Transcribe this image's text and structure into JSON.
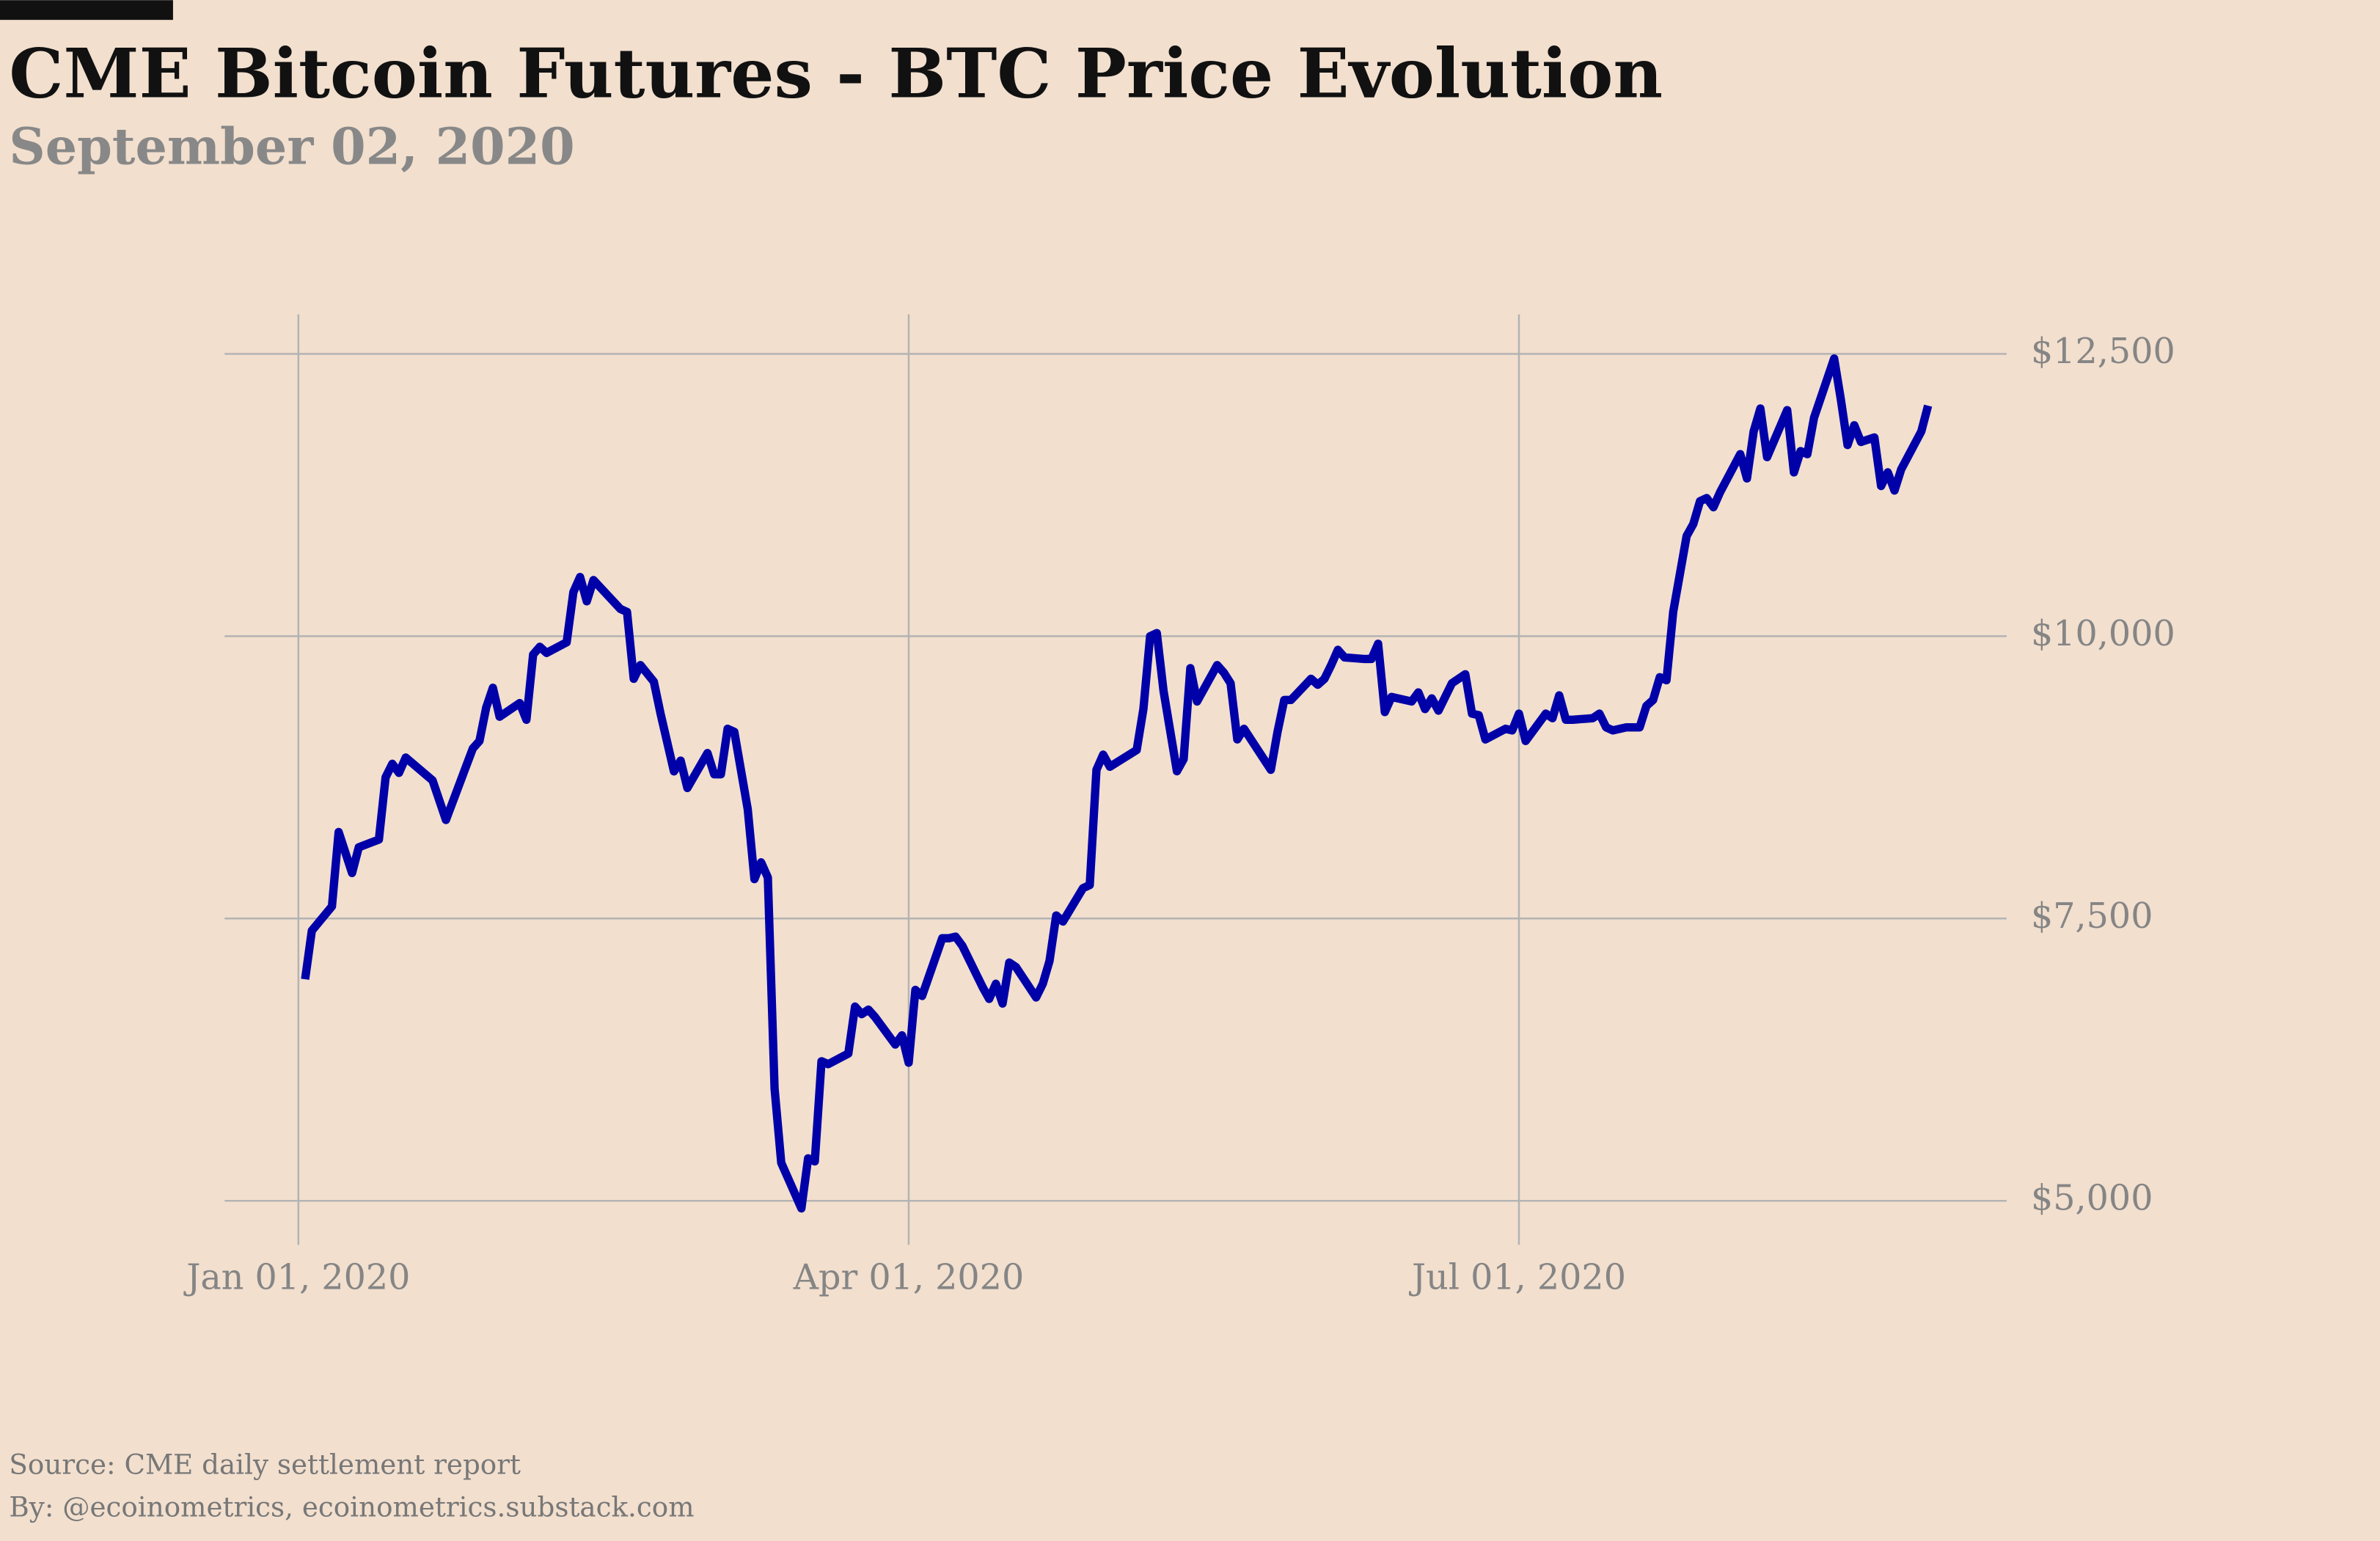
{
  "chart_data": {
    "type": "line",
    "title": "CME Bitcoin Futures - BTC Price Evolution",
    "subtitle": "September 02, 2020",
    "notes": [
      "Source: CME daily settlement report",
      "By: @ecoinometrics, ecoinometrics.substack.com"
    ],
    "color": "#0000a8",
    "grid": true,
    "xlim": [
      "2019-12-21",
      "2020-09-09"
    ],
    "xticks": [
      {
        "value": "2020-01-01",
        "label": "Jan 01, 2020"
      },
      {
        "value": "2020-04-01",
        "label": "Apr 01, 2020"
      },
      {
        "value": "2020-07-01",
        "label": "Jul 01, 2020"
      }
    ],
    "ylim": [
      4610,
      12850
    ],
    "yticks": [
      {
        "value": 5000,
        "label": "$5,000"
      },
      {
        "value": 7500,
        "label": "$7,500"
      },
      {
        "value": 10000,
        "label": "$10,000"
      },
      {
        "value": 12500,
        "label": "$12,500"
      }
    ],
    "x": [
      "2020-01-02",
      "2020-01-03",
      "2020-01-06",
      "2020-01-07",
      "2020-01-09",
      "2020-01-10",
      "2020-01-13",
      "2020-01-14",
      "2020-01-15",
      "2020-01-16",
      "2020-01-17",
      "2020-01-21",
      "2020-01-23",
      "2020-01-27",
      "2020-01-28",
      "2020-01-29",
      "2020-01-30",
      "2020-01-31",
      "2020-02-03",
      "2020-02-04",
      "2020-02-05",
      "2020-02-06",
      "2020-02-07",
      "2020-02-10",
      "2020-02-11",
      "2020-02-12",
      "2020-02-13",
      "2020-02-14",
      "2020-02-18",
      "2020-02-19",
      "2020-02-20",
      "2020-02-21",
      "2020-02-23",
      "2020-02-24",
      "2020-02-26",
      "2020-02-27",
      "2020-02-28",
      "2020-03-02",
      "2020-03-03",
      "2020-03-04",
      "2020-03-05",
      "2020-03-06",
      "2020-03-08",
      "2020-03-09",
      "2020-03-10",
      "2020-03-11",
      "2020-03-12",
      "2020-03-13",
      "2020-03-16",
      "2020-03-17",
      "2020-03-18",
      "2020-03-19",
      "2020-03-20",
      "2020-03-23",
      "2020-03-24",
      "2020-03-25",
      "2020-03-26",
      "2020-03-27",
      "2020-03-30",
      "2020-03-31",
      "2020-04-01",
      "2020-04-02",
      "2020-04-03",
      "2020-04-06",
      "2020-04-07",
      "2020-04-08",
      "2020-04-09",
      "2020-04-12",
      "2020-04-13",
      "2020-04-14",
      "2020-04-15",
      "2020-04-16",
      "2020-04-17",
      "2020-04-20",
      "2020-04-21",
      "2020-04-22",
      "2020-04-23",
      "2020-04-24",
      "2020-04-27",
      "2020-04-28",
      "2020-04-29",
      "2020-04-30",
      "2020-05-01",
      "2020-05-05",
      "2020-05-06",
      "2020-05-07",
      "2020-05-08",
      "2020-05-09",
      "2020-05-11",
      "2020-05-12",
      "2020-05-13",
      "2020-05-14",
      "2020-05-17",
      "2020-05-18",
      "2020-05-19",
      "2020-05-20",
      "2020-05-21",
      "2020-05-25",
      "2020-05-26",
      "2020-05-27",
      "2020-05-28",
      "2020-05-31",
      "2020-06-01",
      "2020-06-02",
      "2020-06-03",
      "2020-06-04",
      "2020-06-05",
      "2020-06-08",
      "2020-06-09",
      "2020-06-10",
      "2020-06-11",
      "2020-06-12",
      "2020-06-15",
      "2020-06-16",
      "2020-06-17",
      "2020-06-18",
      "2020-06-19",
      "2020-06-21",
      "2020-06-23",
      "2020-06-24",
      "2020-06-25",
      "2020-06-26",
      "2020-06-29",
      "2020-06-30",
      "2020-07-01",
      "2020-07-02",
      "2020-07-05",
      "2020-07-06",
      "2020-07-07",
      "2020-07-08",
      "2020-07-09",
      "2020-07-12",
      "2020-07-13",
      "2020-07-14",
      "2020-07-15",
      "2020-07-17",
      "2020-07-19",
      "2020-07-20",
      "2020-07-21",
      "2020-07-22",
      "2020-07-23",
      "2020-07-24",
      "2020-07-26",
      "2020-07-27",
      "2020-07-28",
      "2020-07-29",
      "2020-07-30",
      "2020-07-31",
      "2020-08-03",
      "2020-08-04",
      "2020-08-05",
      "2020-08-06",
      "2020-08-07",
      "2020-08-10",
      "2020-08-11",
      "2020-08-12",
      "2020-08-13",
      "2020-08-14",
      "2020-08-17",
      "2020-08-18",
      "2020-08-19",
      "2020-08-20",
      "2020-08-21",
      "2020-08-23",
      "2020-08-24",
      "2020-08-25",
      "2020-08-26",
      "2020-08-27",
      "2020-08-30",
      "2020-08-31"
    ],
    "values": [
      6962,
      7392,
      7607,
      8266,
      7903,
      8131,
      8199,
      8750,
      8870,
      8790,
      8925,
      8723,
      8373,
      9005,
      9072,
      9368,
      9543,
      9287,
      9408,
      9260,
      9838,
      9906,
      9852,
      9946,
      10390,
      10524,
      10309,
      10497,
      10242,
      10215,
      9623,
      9744,
      9597,
      9314,
      8803,
      8898,
      8656,
      8965,
      8777,
      8777,
      9180,
      9153,
      8468,
      7849,
      7997,
      7863,
      5995,
      5336,
      4933,
      5376,
      5349,
      6236,
      6210,
      6304,
      6720,
      6653,
      6693,
      6626,
      6384,
      6465,
      6223,
      6868,
      6814,
      7325,
      7325,
      7339,
      7258,
      6895,
      6788,
      6922,
      6747,
      7110,
      7070,
      6801,
      6922,
      7124,
      7527,
      7473,
      7769,
      7796,
      8817,
      8951,
      8844,
      8992,
      9355,
      10000,
      10027,
      9516,
      8804,
      8911,
      9717,
      9422,
      9744,
      9677,
      9583,
      9086,
      9180,
      8817,
      9153,
      9435,
      9435,
      9623,
      9570,
      9623,
      9744,
      9879,
      9812,
      9798,
      9798,
      9933,
      9328,
      9462,
      9422,
      9502,
      9355,
      9449,
      9341,
      9583,
      9663,
      9314,
      9301,
      9086,
      9180,
      9166,
      9314,
      9072,
      9314,
      9274,
      9476,
      9260,
      9260,
      9274,
      9314,
      9193,
      9166,
      9193,
      9193,
      9382,
      9435,
      9637,
      9610,
      10215,
      10887,
      10994,
      11196,
      11223,
      11142,
      11276,
      11612,
      11397,
      11814,
      12016,
      11586,
      12002,
      11451,
      11639,
      11612,
      11935,
      12459,
      12096,
      11693,
      11868,
      11720,
      11760,
      11330,
      11451,
      11290,
      11478,
      11814,
      12042
    ]
  }
}
